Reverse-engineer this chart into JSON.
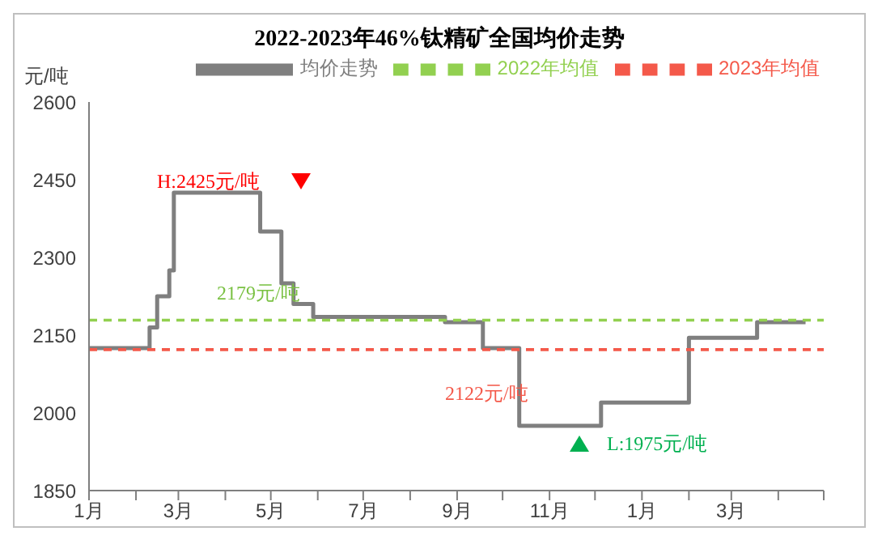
{
  "chart_data": {
    "type": "step",
    "title": "2022-2023年46%钛精矿全国均价走势",
    "ylabel": "元/吨",
    "series": [
      {
        "name": "均价走势",
        "color": "#7f7f7f",
        "line_style": "solid",
        "x": [
          "2022-01-01",
          "2022-02-10",
          "2022-02-15",
          "2022-02-23",
          "2022-02-26",
          "2022-04-24",
          "2022-05-08",
          "2022-05-16",
          "2022-05-29",
          "2022-08-24",
          "2022-09-18",
          "2022-10-12",
          "2022-12-05",
          "2023-02-01",
          "2023-03-18",
          "2023-04-19"
        ],
        "values": [
          2125,
          2165,
          2225,
          2275,
          2425,
          2350,
          2250,
          2210,
          2185,
          2175,
          2125,
          1975,
          2020,
          2145,
          2175,
          2175
        ]
      },
      {
        "name": "2022年均值",
        "color": "#92d050",
        "type": "line",
        "line_style": "dashed",
        "x": [
          "2022-01-01",
          "2023-05-01"
        ],
        "values": [
          2179,
          2179
        ]
      },
      {
        "name": "2023年均值",
        "color": "#f4594a",
        "type": "line",
        "line_style": "dashed",
        "x": [
          "2022-01-01",
          "2023-05-01"
        ],
        "values": [
          2122,
          2122
        ]
      }
    ],
    "annotations": [
      "H:2425元/吨",
      "2179元/吨",
      "2122元/吨",
      "L:1975元/吨"
    ],
    "xlim": [
      "2022-01-01",
      "2023-05-01"
    ],
    "xticks": [
      {
        "value": "2022-01-01",
        "label": "1月"
      },
      {
        "value": "2022-02-01",
        "label": null
      },
      {
        "value": "2022-03-01",
        "label": "3月"
      },
      {
        "value": "2022-04-01",
        "label": null
      },
      {
        "value": "2022-05-01",
        "label": "5月"
      },
      {
        "value": "2022-06-01",
        "label": null
      },
      {
        "value": "2022-07-01",
        "label": "7月"
      },
      {
        "value": "2022-08-01",
        "label": null
      },
      {
        "value": "2022-09-01",
        "label": "9月"
      },
      {
        "value": "2022-10-01",
        "label": null
      },
      {
        "value": "2022-11-01",
        "label": "11月"
      },
      {
        "value": "2022-12-01",
        "label": null
      },
      {
        "value": "2023-01-01",
        "label": "1月"
      },
      {
        "value": "2023-02-01",
        "label": null
      },
      {
        "value": "2023-03-01",
        "label": "3月"
      },
      {
        "value": "2023-04-01",
        "label": null
      },
      {
        "value": "2023-05-01",
        "label": null
      }
    ],
    "ylim": [
      1850,
      2600
    ],
    "yticks": [
      1850,
      2000,
      2150,
      2300,
      2450,
      2600
    ],
    "legend": "top",
    "marker": "none"
  }
}
